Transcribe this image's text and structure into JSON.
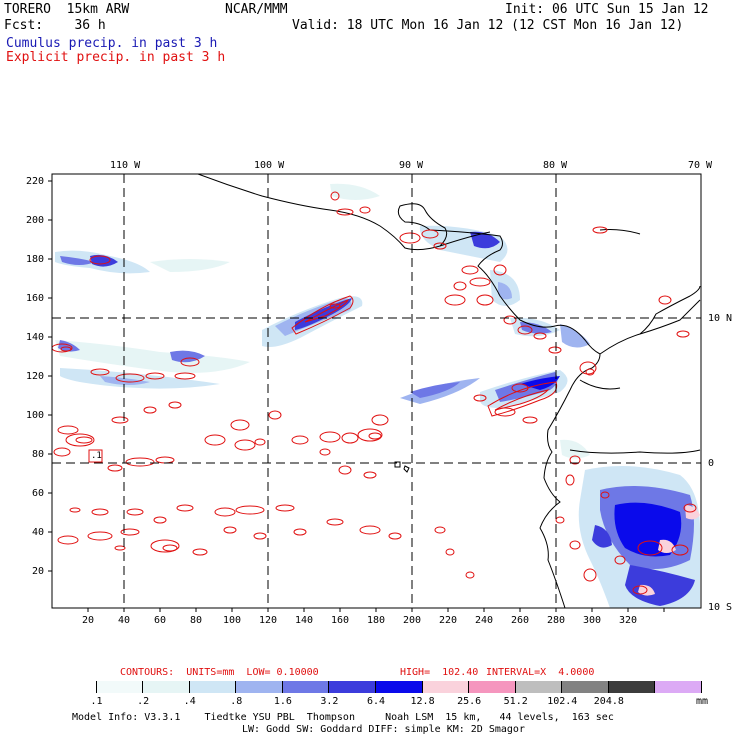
{
  "header": {
    "model": "TORERO  15km ARW",
    "org": "NCAR/MMM",
    "init": "Init: 06 UTC Sun 15 Jan 12",
    "fcst": "Fcst:    36 h",
    "valid": "Valid: 18 UTC Mon 16 Jan 12 (12 CST Mon 16 Jan 12)",
    "field1": "Cumulus precip. in past 3 h",
    "field2": "Explicit precip. in past 3 h",
    "field1_color": "#1a1ab4",
    "field2_color": "#e01010"
  },
  "map": {
    "lon_labels": [
      "110 W",
      "100 W",
      "90 W",
      "80 W",
      "70 W"
    ],
    "lat_labels_right": [
      "10 N",
      "0",
      "10 S"
    ],
    "y_ticks": [
      "220",
      "200",
      "180",
      "160",
      "140",
      "120",
      "100",
      "80",
      "60",
      "40",
      "20"
    ],
    "x_ticks": [
      "20",
      "40",
      "60",
      "80",
      "100",
      "120",
      "140",
      "160",
      "180",
      "200",
      "220",
      "240",
      "260",
      "280",
      "300",
      "320"
    ],
    "contour_label": ".1"
  },
  "contours": {
    "units_label": "CONTOURS:  UNITS=mm  LOW= 0.10000",
    "high_label": "HIGH=  102.40",
    "interval_label": "INTERVAL=X  4.0000"
  },
  "colorbar": {
    "colors": [
      "#ffffff",
      "#f2fafa",
      "#e6f5f5",
      "#cfe6f5",
      "#9fb4f0",
      "#6e78e6",
      "#3c3cdc",
      "#0a0aeb",
      "#fad2dc",
      "#f596be",
      "#bebebe",
      "#828282",
      "#3c3c3c",
      "#dcaaf5"
    ],
    "labels": [
      ".1",
      ".2",
      ".4",
      ".8",
      "1.6",
      "3.2",
      "6.4",
      "12.8",
      "25.6",
      "51.2",
      "102.4",
      "204.8"
    ],
    "units": "mm"
  },
  "footer": {
    "line1": "Model Info: V3.3.1    Tiedtke YSU PBL  Thompson     Noah LSM  15 km,   44 levels,  163 sec",
    "line2": "LW: Godd SW: Goddard DIFF: simple KM: 2D Smagor"
  }
}
